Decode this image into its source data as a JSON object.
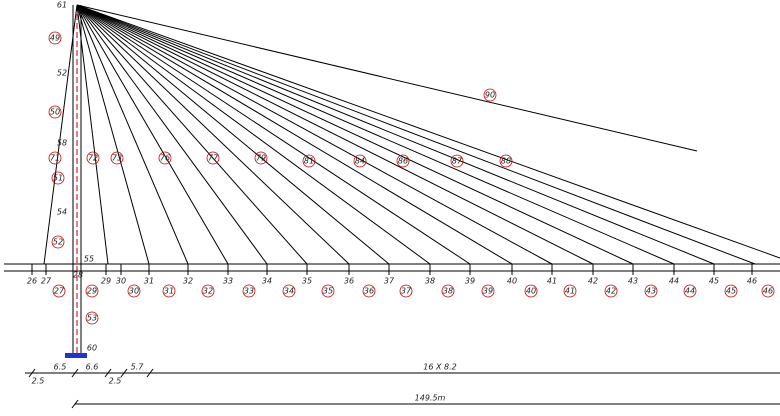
{
  "tower_labels": [
    "61",
    "52",
    "58",
    "54",
    "55",
    "28",
    "60"
  ],
  "circled_cable_labels": [
    "49",
    "50",
    "71",
    "51",
    "52",
    "72",
    "73",
    "76",
    "77",
    "79",
    "81",
    "84",
    "86",
    "87",
    "88",
    "90"
  ],
  "deck_nodes": [
    "26",
    "27",
    "29",
    "30",
    "31",
    "32",
    "33",
    "34",
    "35",
    "36",
    "37",
    "38",
    "39",
    "40",
    "41",
    "42",
    "43",
    "44",
    "45",
    "46"
  ],
  "circled_deck_labels": [
    "27",
    "29",
    "30",
    "31",
    "32",
    "33",
    "34",
    "35",
    "36",
    "37",
    "38",
    "39",
    "40",
    "41",
    "42",
    "43",
    "44",
    "45",
    "46",
    "53"
  ],
  "dimensions": [
    "2.5",
    "6.5",
    "6.6",
    "2.5",
    "5.7",
    "16 X 8.2",
    "149.5m"
  ]
}
